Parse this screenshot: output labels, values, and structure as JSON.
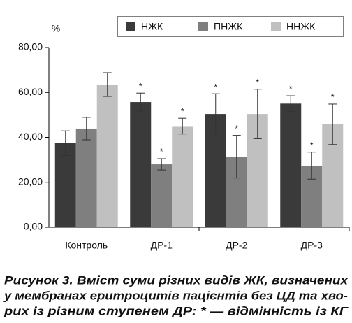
{
  "chart_data": {
    "type": "bar",
    "y_unit": "%",
    "categories": [
      "Контроль",
      "ДР-1",
      "ДР-2",
      "ДР-3"
    ],
    "series": [
      {
        "name": "НЖК",
        "color": "#3a3a3a",
        "values": [
          37.4,
          55.7,
          50.4,
          55
        ],
        "errors": [
          5.5,
          4,
          9,
          3.5
        ],
        "marks": [
          null,
          "*",
          "*",
          "*"
        ]
      },
      {
        "name": "ПНЖК",
        "color": "#7f7f7f",
        "values": [
          43.9,
          28,
          31.4,
          27.4
        ],
        "errors": [
          5,
          2.5,
          9.5,
          6
        ],
        "marks": [
          null,
          "*",
          "*",
          "*"
        ]
      },
      {
        "name": "ННЖК",
        "color": "#c0c0c0",
        "values": [
          63.5,
          45,
          50.4,
          45.8
        ],
        "errors": [
          5.3,
          3.5,
          11,
          9
        ],
        "marks": [
          null,
          "*",
          "*",
          "*"
        ]
      }
    ],
    "ylim": [
      0,
      80
    ],
    "yticks": [
      {
        "value": 0,
        "label": "0,00"
      },
      {
        "value": 20,
        "label": "20,00"
      },
      {
        "value": 40,
        "label": "40,00"
      },
      {
        "value": 60,
        "label": "60,00"
      },
      {
        "value": 80,
        "label": "80,00"
      }
    ],
    "legend": "top-right",
    "caption": [
      "Рисунок 3. Вміст суми різних видів ЖК, визначених",
      "у мембранах еритроцитів пацієнтів без ЦД та хво-",
      "рих із різним ступенем ДР: * — відмінність із КГ"
    ]
  }
}
